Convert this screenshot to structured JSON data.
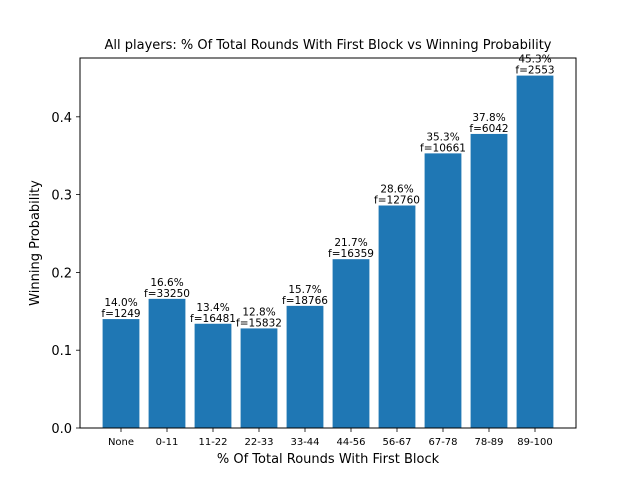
{
  "chart_data": {
    "type": "bar",
    "title": "All players: % Of Total Rounds With First Block vs Winning Probability",
    "xlabel": "% Of Total Rounds With First Block",
    "ylabel": "Winning Probability",
    "categories": [
      "None",
      "0-11",
      "11-22",
      "22-33",
      "33-44",
      "44-56",
      "56-67",
      "67-78",
      "78-89",
      "89-100"
    ],
    "values": [
      0.14,
      0.166,
      0.134,
      0.128,
      0.157,
      0.217,
      0.286,
      0.353,
      0.378,
      0.453
    ],
    "pct_labels": [
      "14.0%",
      "16.6%",
      "13.4%",
      "12.8%",
      "15.7%",
      "21.7%",
      "28.6%",
      "35.3%",
      "37.8%",
      "45.3%"
    ],
    "freq_labels": [
      "f=1249",
      "f=33250",
      "f=16481",
      "f=15832",
      "f=18766",
      "f=16359",
      "f=12760",
      "f=10661",
      "f=6042",
      "f=2553"
    ],
    "yticks": [
      0.0,
      0.1,
      0.2,
      0.3,
      0.4
    ],
    "ytick_labels": [
      "0.0",
      "0.1",
      "0.2",
      "0.3",
      "0.4"
    ],
    "ylim": [
      0,
      0.4756
    ],
    "bar_color": "#1f77b4",
    "grid": false,
    "legend": "none"
  }
}
